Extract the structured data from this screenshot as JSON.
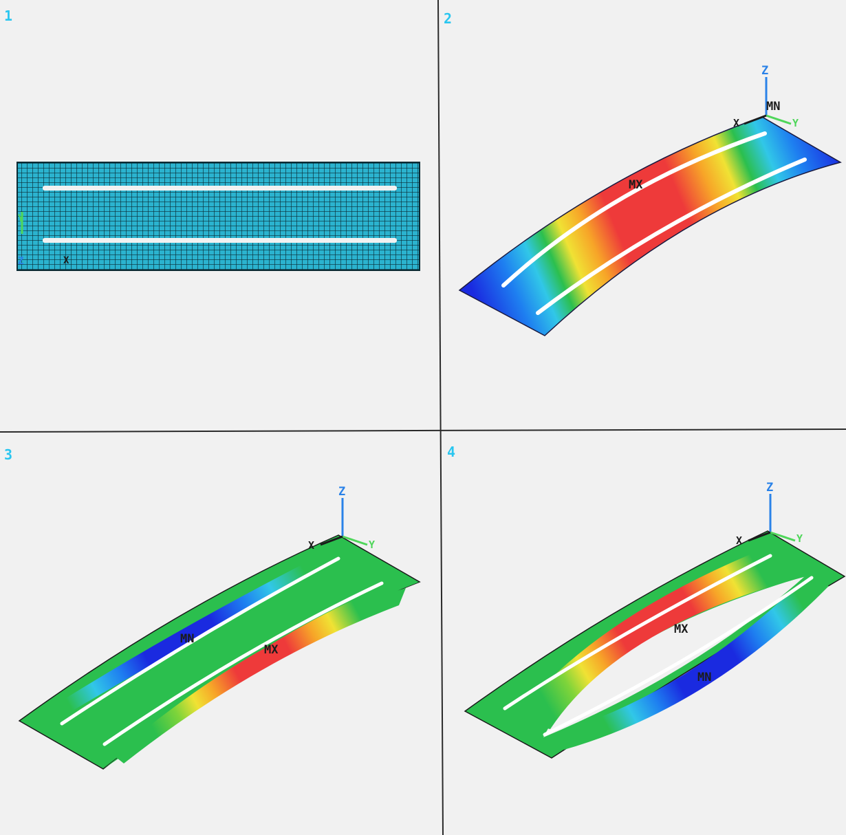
{
  "colors": {
    "background": "#f1f1f1",
    "divider": "#2a2a2a",
    "panel_number": "#29c6f0",
    "mesh_fill": "#2bb3cf",
    "mesh_line": "#0a2a33",
    "contour": [
      "#1a2ae0",
      "#1e7ff0",
      "#31c7e8",
      "#2bbf4e",
      "#7fd43a",
      "#f0e234",
      "#f7a528",
      "#ee3a3a"
    ],
    "axis_z": "#2a82e8",
    "axis_y": "#4fd65a",
    "axis_x": "#1b1b1b",
    "label": "#1b1b1b"
  },
  "panels": [
    {
      "number": "1",
      "kind": "mesh",
      "axes": {
        "y": "Y",
        "z": "Z",
        "x": "X"
      }
    },
    {
      "number": "2",
      "kind": "deformed-contour",
      "axes": {
        "z": "Z",
        "y": "Y",
        "x": "X"
      },
      "labels": {
        "mn": "MN",
        "mx": "MX"
      }
    },
    {
      "number": "3",
      "kind": "deformed-contour",
      "axes": {
        "z": "Z",
        "y": "Y",
        "x": "X"
      },
      "labels": {
        "mn": "MN",
        "mx": "MX"
      }
    },
    {
      "number": "4",
      "kind": "deformed-contour",
      "axes": {
        "z": "Z",
        "y": "Y",
        "x": "X"
      },
      "labels": {
        "mx": "MX",
        "mn": "MN"
      }
    }
  ]
}
